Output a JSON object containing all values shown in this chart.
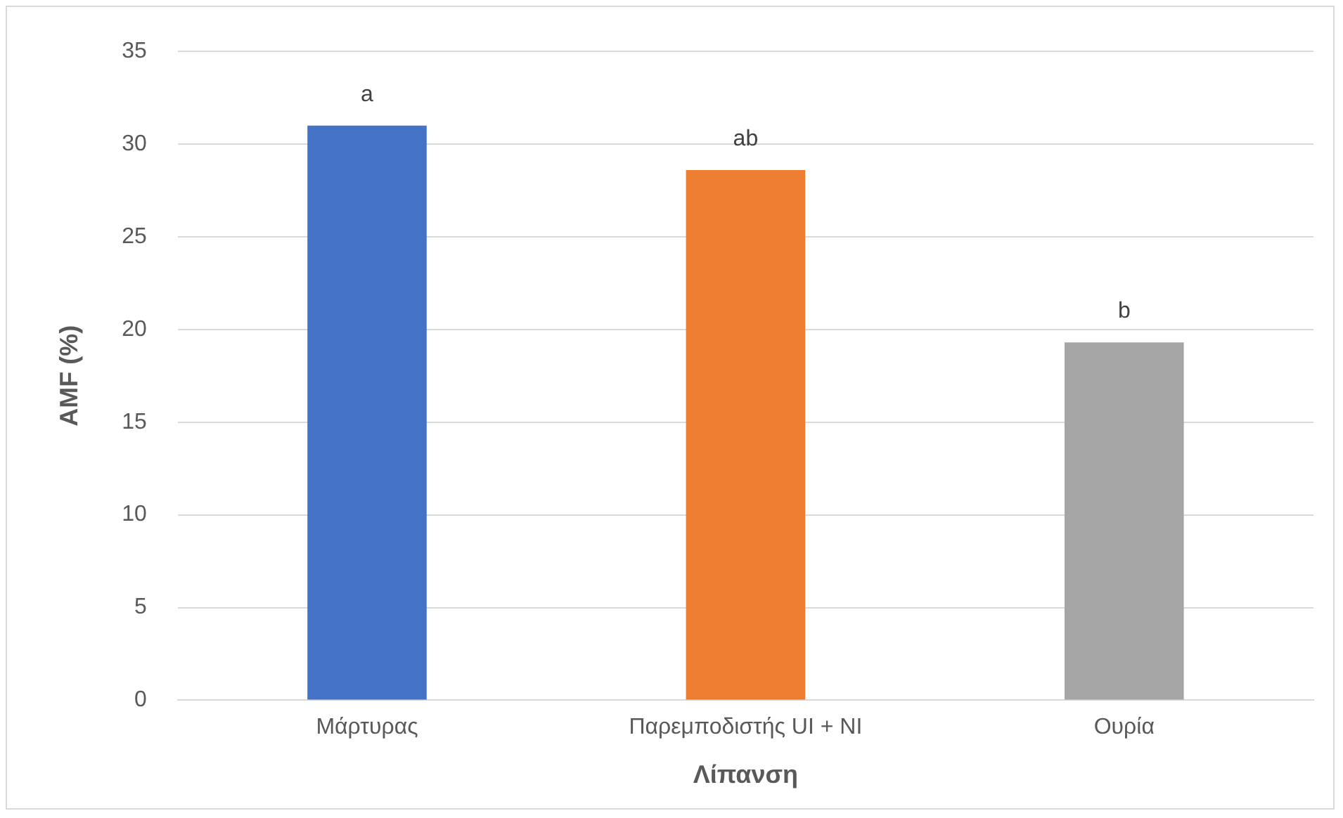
{
  "chart_data": {
    "type": "bar",
    "xlabel": "Λίπανση",
    "ylabel": "AMF (%)",
    "categories": [
      "Μάρτυρας",
      "Παρεμποδιστής UI + NI",
      "Ουρία"
    ],
    "values": [
      31.0,
      28.6,
      19.3
    ],
    "colors": [
      "#4472c4",
      "#ed7d31",
      "#a5a5a5"
    ],
    "ylim": [
      0,
      35
    ],
    "yticks": [
      0,
      5,
      10,
      15,
      20,
      25,
      30,
      35
    ],
    "grid": "y",
    "legend": false,
    "annotations": [
      {
        "text": "a",
        "x": "Μάρτυρας",
        "y": 31.0
      },
      {
        "text": "ab",
        "x": "Παρεμποδιστής UI + NI",
        "y": 28.6
      },
      {
        "text": "b",
        "x": "Ουρία",
        "y": 19.3
      }
    ]
  }
}
